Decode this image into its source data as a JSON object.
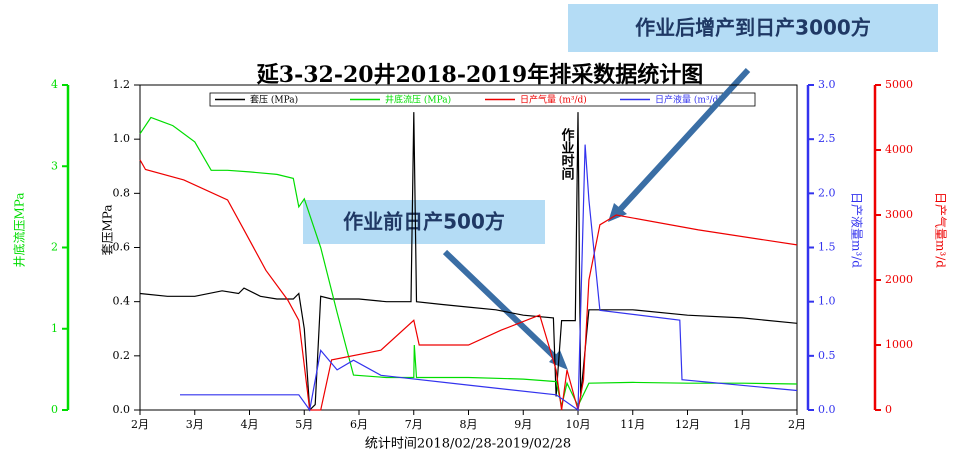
{
  "chart_data": {
    "type": "line",
    "title": "延3-32-20井2018-2019年排采数据统计图",
    "xlabel": "统计时间2018/02/28-2019/02/28",
    "xlim": [
      0,
      12
    ],
    "xticks": [
      {
        "value": 0,
        "label": "2月"
      },
      {
        "value": 1,
        "label": "3月"
      },
      {
        "value": 2,
        "label": "4月"
      },
      {
        "value": 3,
        "label": "5月"
      },
      {
        "value": 4,
        "label": "6月"
      },
      {
        "value": 5,
        "label": "7月"
      },
      {
        "value": 6,
        "label": "8月"
      },
      {
        "value": 7,
        "label": "9月"
      },
      {
        "value": 8,
        "label": "10月"
      },
      {
        "value": 9,
        "label": "11月"
      },
      {
        "value": 10,
        "label": "12月"
      },
      {
        "value": 11,
        "label": "1月"
      },
      {
        "value": 12,
        "label": "2月"
      }
    ],
    "ylabel": "套压MPa",
    "ylim": [
      0,
      1.2
    ],
    "yticks": [
      {
        "value": 0,
        "label": "0.0"
      },
      0.2,
      0.4,
      0.6,
      0.8,
      {
        "value": 1,
        "label": "1.0"
      },
      1.2
    ],
    "y2label": "井底流压MPa",
    "y2lim": [
      0,
      4
    ],
    "y2ticks": [
      0,
      1,
      2,
      3,
      4
    ],
    "y3label": "日产液量m³/d",
    "y3lim": [
      0,
      3
    ],
    "y3ticks": [
      {
        "value": 0,
        "label": "0.0"
      },
      0.5,
      {
        "value": 1,
        "label": "1.0"
      },
      1.5,
      {
        "value": 2,
        "label": "2.0"
      },
      2.5,
      {
        "value": 3,
        "label": "3.0"
      }
    ],
    "y4label": "日产气量m³/d",
    "y4lim": [
      0,
      5000
    ],
    "y4ticks": [
      0,
      1000,
      2000,
      3000,
      4000,
      5000
    ],
    "series": [
      {
        "name": "套压 (MPa)",
        "color": "#000000",
        "axis": "y",
        "x": [
          0,
          0.5,
          1,
          1.5,
          1.8,
          1.9,
          2.2,
          2.5,
          2.8,
          2.9,
          3.0,
          3.1,
          3.2,
          3.3,
          3.5,
          4.0,
          4.5,
          4.95,
          5.0,
          5.05,
          5.5,
          6.0,
          6.5,
          7.0,
          7.55,
          7.6,
          7.7,
          7.8,
          7.95,
          8.0,
          8.05,
          8.2,
          9,
          10,
          11,
          12
        ],
        "values": [
          0.43,
          0.42,
          0.42,
          0.44,
          0.43,
          0.45,
          0.42,
          0.41,
          0.41,
          0.43,
          0.3,
          0,
          0.02,
          0.42,
          0.41,
          0.41,
          0.4,
          0.4,
          1.1,
          0.4,
          0.39,
          0.38,
          0.37,
          0.35,
          0.34,
          0.05,
          0.33,
          0.33,
          0.33,
          1.1,
          0.05,
          0.37,
          0.37,
          0.35,
          0.34,
          0.32
        ]
      },
      {
        "name": "井底流压 (MPa)",
        "color": "#00dd00",
        "axis": "y2",
        "x": [
          0,
          0.2,
          0.4,
          0.6,
          1,
          1.3,
          1.6,
          2,
          2.5,
          2.8,
          2.9,
          3.0,
          3.3,
          3.6,
          3.9,
          4.5,
          5,
          5.01,
          5.05,
          6,
          7,
          7.6,
          7.7,
          7.8,
          8.0,
          8.2,
          9,
          10,
          11,
          12
        ],
        "values": [
          3.4,
          3.6,
          3.55,
          3.5,
          3.3,
          2.95,
          2.95,
          2.93,
          2.9,
          2.85,
          2.5,
          2.6,
          2.0,
          1.2,
          0.43,
          0.4,
          0.4,
          0.8,
          0.4,
          0.4,
          0.38,
          0.35,
          0.05,
          0.33,
          0.05,
          0.33,
          0.34,
          0.33,
          0.33,
          0.32
        ]
      },
      {
        "name": "日产气量 (m³/d)",
        "color": "#ee0000",
        "axis": "y4",
        "x": [
          0,
          0.1,
          0.8,
          1.6,
          1.9,
          2.3,
          2.7,
          2.9,
          3.1,
          3.3,
          3.5,
          4.4,
          5.0,
          5.1,
          6.0,
          6.6,
          7.3,
          7.6,
          7.7,
          7.8,
          8.0,
          8.1,
          8.2,
          8.4,
          8.7,
          10.2,
          12
        ],
        "values": [
          3850,
          3700,
          3540,
          3230,
          2770,
          2150,
          1690,
          1380,
          0,
          0,
          770,
          920,
          1380,
          1000,
          1000,
          1230,
          1460,
          615,
          0,
          615,
          0,
          460,
          2000,
          2850,
          3000,
          2770,
          2540
        ]
      },
      {
        "name": "日产液量 (m³/d)",
        "color": "#3333ee",
        "axis": "y3",
        "x": [
          0.73,
          2.9,
          3.1,
          3.3,
          3.6,
          3.9,
          4.4,
          6.0,
          7.6,
          8.0,
          8.13,
          8.2,
          8.4,
          9.86,
          9.9,
          12
        ],
        "values": [
          0.14,
          0.14,
          0,
          0.55,
          0.37,
          0.46,
          0.32,
          0.23,
          0.14,
          0,
          2.45,
          1.94,
          0.92,
          0.83,
          0.28,
          0.18
        ]
      }
    ],
    "annotations": [
      "作业后增产到日产3000方",
      "作业前日产500方",
      "作业时间"
    ]
  }
}
